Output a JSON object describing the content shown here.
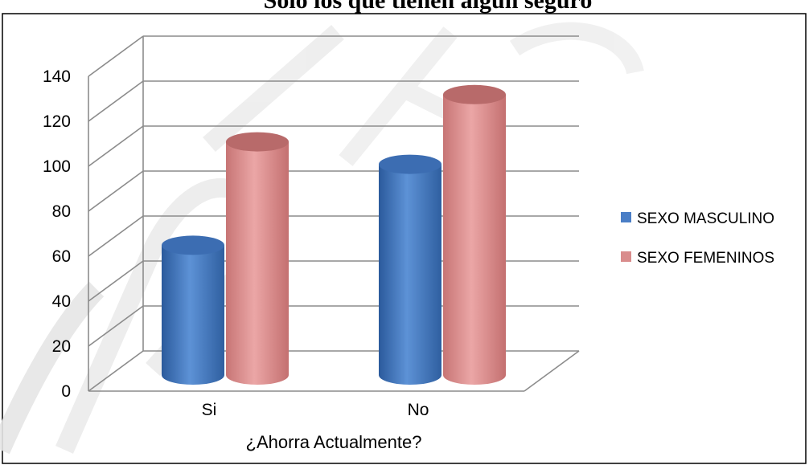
{
  "chart_data": {
    "type": "bar",
    "title": "Sólo los que tienen algún seguro",
    "categories": [
      "Si",
      "No"
    ],
    "series": [
      {
        "name": "SEXO MASCULINO",
        "values": [
          57,
          93
        ],
        "color": "#4a7ec6"
      },
      {
        "name": "SEXO FEMENINOS",
        "values": [
          103,
          124
        ],
        "color": "#d98c8c"
      }
    ],
    "xlabel": "¿Ahorra Actualmente?",
    "ylabel": "",
    "ylim": [
      0,
      140
    ],
    "yticks": [
      0,
      20,
      40,
      60,
      80,
      100,
      120,
      140
    ],
    "grid": true,
    "legend": "right",
    "style": "3d-cylinder",
    "watermark": "DIDEC"
  }
}
